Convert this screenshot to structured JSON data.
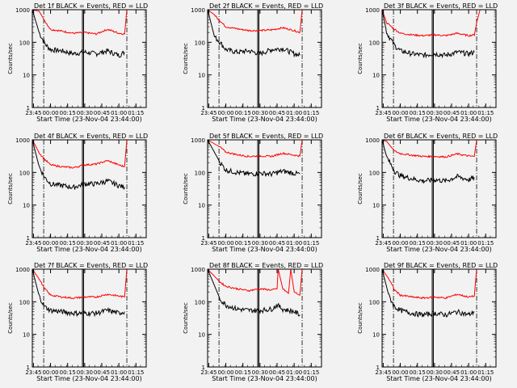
{
  "figure": {
    "xlabel": "Start Time (23-Nov-04 23:44:00)",
    "ylabel": "Counts/sec",
    "x_tick_labels": [
      "23:45",
      "00:00",
      "00:15",
      "00:30",
      "00:45",
      "01:00",
      "01:15"
    ],
    "y_tick_labels": [
      "1",
      "10",
      "100",
      "1000"
    ],
    "colors": {
      "events": "#000000",
      "lld": "#ff0000",
      "background": "#f2f2f2"
    }
  },
  "chart_data": [
    {
      "type": "line",
      "title": "Det 1f BLACK = Events, RED = LLD",
      "xlabel": "Start Time (23-Nov-04 23:44:00)",
      "ylabel": "Counts/sec",
      "y_scale": "log",
      "ylim": [
        1,
        1000
      ],
      "x_ticks": [
        "23:45",
        "00:00",
        "00:15",
        "00:30",
        "00:45",
        "01:00",
        "01:15"
      ],
      "series": [
        {
          "name": "Events",
          "color": "#000000",
          "x": [
            "23:44:00",
            "23:50",
            "23:55",
            "00:00",
            "00:10",
            "00:20",
            "00:30",
            "00:40",
            "00:50",
            "01:00",
            "01:05"
          ],
          "values": [
            1000,
            200,
            90,
            60,
            55,
            45,
            50,
            45,
            55,
            40,
            50
          ]
        },
        {
          "name": "LLD",
          "color": "#ff0000",
          "x": [
            "23:44:00",
            "23:50",
            "23:55",
            "00:00",
            "00:10",
            "00:20",
            "00:30",
            "00:40",
            "00:50",
            "01:00",
            "01:05",
            "01:07"
          ],
          "values": [
            1000,
            900,
            450,
            250,
            220,
            190,
            200,
            180,
            250,
            190,
            180,
            1000
          ]
        }
      ],
      "markers": [
        "23:54",
        "00:28",
        "00:29",
        "01:07"
      ]
    },
    {
      "type": "line",
      "title": "Det 2f BLACK = Events, RED = LLD",
      "xlabel": "Start Time (23-Nov-04 23:44:00)",
      "ylabel": "Counts/sec",
      "y_scale": "log",
      "ylim": [
        1,
        1000
      ],
      "x_ticks": [
        "23:45",
        "00:00",
        "00:15",
        "00:30",
        "00:45",
        "01:00",
        "01:15"
      ],
      "series": [
        {
          "name": "Events",
          "color": "#000000",
          "x": [
            "23:44:00",
            "23:50",
            "23:55",
            "00:00",
            "00:10",
            "00:20",
            "00:30",
            "00:40",
            "00:50",
            "01:00",
            "01:05"
          ],
          "values": [
            1000,
            150,
            100,
            60,
            50,
            55,
            45,
            60,
            65,
            45,
            40
          ]
        },
        {
          "name": "LLD",
          "color": "#ff0000",
          "x": [
            "23:44:00",
            "23:50",
            "23:55",
            "00:00",
            "00:10",
            "00:20",
            "00:30",
            "00:40",
            "00:50",
            "01:00",
            "01:05",
            "01:07"
          ],
          "values": [
            1000,
            700,
            450,
            300,
            260,
            230,
            230,
            240,
            280,
            230,
            200,
            1000
          ]
        }
      ],
      "markers": [
        "23:54",
        "00:28",
        "00:29",
        "01:07"
      ]
    },
    {
      "type": "line",
      "title": "Det 3f BLACK = Events, RED = LLD",
      "xlabel": "Start Time (23-Nov-04 23:44:00)",
      "ylabel": "Counts/sec",
      "y_scale": "log",
      "ylim": [
        1,
        1000
      ],
      "x_ticks": [
        "23:45",
        "00:00",
        "00:15",
        "00:30",
        "00:45",
        "01:00",
        "01:15"
      ],
      "series": [
        {
          "name": "Events",
          "color": "#000000",
          "x": [
            "23:44:00",
            "23:48",
            "23:55",
            "00:00",
            "00:10",
            "00:20",
            "00:30",
            "00:40",
            "00:50",
            "01:00",
            "01:05"
          ],
          "values": [
            1000,
            200,
            80,
            55,
            45,
            40,
            45,
            40,
            50,
            45,
            50
          ]
        },
        {
          "name": "LLD",
          "color": "#ff0000",
          "x": [
            "23:44:00",
            "23:48",
            "23:55",
            "00:00",
            "00:10",
            "00:20",
            "00:30",
            "00:40",
            "00:50",
            "01:00",
            "01:05",
            "01:07",
            "01:10"
          ],
          "values": [
            1000,
            400,
            250,
            190,
            170,
            160,
            170,
            160,
            190,
            160,
            170,
            400,
            1000
          ]
        }
      ],
      "markers": [
        "23:54",
        "00:28",
        "00:29",
        "01:07"
      ]
    },
    {
      "type": "line",
      "title": "Det 4f BLACK = Events, RED = LLD",
      "xlabel": "Start Time (23-Nov-04 23:44:00)",
      "ylabel": "Counts/sec",
      "y_scale": "log",
      "ylim": [
        1,
        1000
      ],
      "x_ticks": [
        "23:45",
        "00:00",
        "00:15",
        "00:30",
        "00:45",
        "01:00",
        "01:15"
      ],
      "series": [
        {
          "name": "Events",
          "color": "#000000",
          "x": [
            "23:44:00",
            "23:50",
            "23:55",
            "00:00",
            "00:10",
            "00:20",
            "00:30",
            "00:40",
            "00:50",
            "01:00",
            "01:05"
          ],
          "values": [
            1000,
            150,
            70,
            45,
            40,
            35,
            45,
            45,
            55,
            40,
            35
          ]
        },
        {
          "name": "LLD",
          "color": "#ff0000",
          "x": [
            "23:44:00",
            "23:50",
            "23:55",
            "00:00",
            "00:10",
            "00:20",
            "00:30",
            "00:40",
            "00:50",
            "01:00",
            "01:05",
            "01:07"
          ],
          "values": [
            1000,
            400,
            250,
            170,
            150,
            140,
            170,
            180,
            230,
            170,
            150,
            1000
          ]
        }
      ],
      "markers": [
        "23:54",
        "00:28",
        "00:29",
        "01:07"
      ]
    },
    {
      "type": "line",
      "title": "Det 5f BLACK = Events, RED = LLD",
      "xlabel": "Start Time (23-Nov-04 23:44:00)",
      "ylabel": "Counts/sec",
      "y_scale": "log",
      "ylim": [
        1,
        1000
      ],
      "x_ticks": [
        "23:45",
        "00:00",
        "00:15",
        "00:30",
        "00:45",
        "01:00",
        "01:15"
      ],
      "series": [
        {
          "name": "Events",
          "color": "#000000",
          "x": [
            "23:44:00",
            "23:55",
            "00:00",
            "00:10",
            "00:20",
            "00:30",
            "00:40",
            "00:50",
            "01:00",
            "01:05"
          ],
          "values": [
            1000,
            200,
            120,
            100,
            90,
            95,
            90,
            110,
            95,
            90
          ]
        },
        {
          "name": "LLD",
          "color": "#ff0000",
          "x": [
            "23:44:00",
            "23:55",
            "00:00",
            "00:10",
            "00:20",
            "00:30",
            "00:40",
            "00:50",
            "01:00",
            "01:05",
            "01:07"
          ],
          "values": [
            1000,
            600,
            420,
            350,
            310,
            320,
            310,
            390,
            340,
            320,
            1000
          ]
        }
      ],
      "markers": [
        "23:54",
        "00:28",
        "00:29",
        "01:07"
      ]
    },
    {
      "type": "line",
      "title": "Det 6f BLACK = Events, RED = LLD",
      "xlabel": "Start Time (23-Nov-04 23:44:00)",
      "ylabel": "Counts/sec",
      "y_scale": "log",
      "ylim": [
        1,
        1000
      ],
      "x_ticks": [
        "23:45",
        "00:00",
        "00:15",
        "00:30",
        "00:45",
        "01:00",
        "01:15"
      ],
      "series": [
        {
          "name": "Events",
          "color": "#000000",
          "x": [
            "23:44:00",
            "23:48",
            "23:55",
            "00:00",
            "00:10",
            "00:20",
            "00:30",
            "00:40",
            "00:50",
            "01:00",
            "01:05"
          ],
          "values": [
            1000,
            300,
            110,
            80,
            65,
            55,
            60,
            55,
            75,
            60,
            70
          ]
        },
        {
          "name": "LLD",
          "color": "#ff0000",
          "x": [
            "23:44:00",
            "23:48",
            "23:55",
            "00:00",
            "00:10",
            "00:20",
            "00:30",
            "00:40",
            "00:50",
            "01:00",
            "01:05",
            "01:07"
          ],
          "values": [
            1000,
            900,
            450,
            380,
            340,
            310,
            310,
            300,
            370,
            320,
            310,
            1000
          ]
        }
      ],
      "markers": [
        "23:54",
        "00:28",
        "00:29",
        "01:07"
      ]
    },
    {
      "type": "line",
      "title": "Det 7f BLACK = Events, RED = LLD",
      "xlabel": "Start Time (23-Nov-04 23:44:00)",
      "ylabel": "Counts/sec",
      "y_scale": "log",
      "ylim": [
        1,
        1000
      ],
      "x_ticks": [
        "23:45",
        "00:00",
        "00:15",
        "00:30",
        "00:45",
        "01:00",
        "01:15"
      ],
      "series": [
        {
          "name": "Events",
          "color": "#000000",
          "x": [
            "23:44:00",
            "23:50",
            "23:55",
            "00:00",
            "00:10",
            "00:20",
            "00:30",
            "00:40",
            "00:50",
            "01:00",
            "01:05"
          ],
          "values": [
            1000,
            150,
            70,
            55,
            50,
            45,
            45,
            45,
            55,
            45,
            50
          ]
        },
        {
          "name": "LLD",
          "color": "#ff0000",
          "x": [
            "23:44:00",
            "23:50",
            "23:55",
            "00:00",
            "00:10",
            "00:20",
            "00:30",
            "00:40",
            "00:50",
            "01:00",
            "01:05",
            "01:07"
          ],
          "values": [
            1000,
            500,
            250,
            160,
            140,
            130,
            140,
            140,
            170,
            150,
            140,
            1000
          ]
        }
      ],
      "markers": [
        "23:54",
        "00:28",
        "00:29",
        "01:07"
      ]
    },
    {
      "type": "line",
      "title": "Det 8f BLACK = Events, RED = LLD",
      "xlabel": "Start Time (23-Nov-04 23:44:00)",
      "ylabel": "Counts/sec",
      "y_scale": "log",
      "ylim": [
        1,
        1000
      ],
      "x_ticks": [
        "23:45",
        "00:00",
        "00:15",
        "00:30",
        "00:45",
        "01:00",
        "01:15"
      ],
      "series": [
        {
          "name": "Events",
          "color": "#000000",
          "x": [
            "23:44:00",
            "23:55",
            "00:00",
            "00:10",
            "00:20",
            "00:30",
            "00:40",
            "00:45",
            "00:50",
            "01:00",
            "01:05"
          ],
          "values": [
            1000,
            120,
            80,
            60,
            55,
            55,
            60,
            80,
            60,
            50,
            40
          ]
        },
        {
          "name": "LLD",
          "color": "#ff0000",
          "x": [
            "23:44:00",
            "23:55",
            "00:00",
            "00:10",
            "00:20",
            "00:30",
            "00:40",
            "00:45",
            "00:46",
            "00:50",
            "00:55",
            "00:57",
            "01:00",
            "01:05",
            "01:07"
          ],
          "values": [
            1000,
            400,
            300,
            250,
            220,
            250,
            230,
            250,
            1000,
            250,
            180,
            1000,
            200,
            160,
            1000
          ]
        }
      ],
      "markers": [
        "23:54",
        "00:28",
        "00:29",
        "01:07"
      ]
    },
    {
      "type": "line",
      "title": "Det 9f BLACK = Events, RED = LLD",
      "xlabel": "Start Time (23-Nov-04 23:44:00)",
      "ylabel": "Counts/sec",
      "y_scale": "log",
      "ylim": [
        1,
        1000
      ],
      "x_ticks": [
        "23:45",
        "00:00",
        "00:15",
        "00:30",
        "00:45",
        "01:00",
        "01:15"
      ],
      "series": [
        {
          "name": "Events",
          "color": "#000000",
          "x": [
            "23:44:00",
            "23:50",
            "23:55",
            "00:00",
            "00:10",
            "00:20",
            "00:30",
            "00:40",
            "00:50",
            "01:00",
            "01:05"
          ],
          "values": [
            1000,
            150,
            70,
            55,
            45,
            40,
            45,
            40,
            50,
            40,
            50
          ]
        },
        {
          "name": "LLD",
          "color": "#ff0000",
          "x": [
            "23:44:00",
            "23:50",
            "23:55",
            "00:00",
            "00:10",
            "00:20",
            "00:30",
            "00:40",
            "00:50",
            "01:00",
            "01:05",
            "01:07"
          ],
          "values": [
            1000,
            500,
            230,
            160,
            140,
            130,
            140,
            130,
            170,
            140,
            150,
            1000
          ]
        }
      ],
      "markers": [
        "23:54",
        "00:28",
        "00:29",
        "01:07"
      ]
    }
  ]
}
